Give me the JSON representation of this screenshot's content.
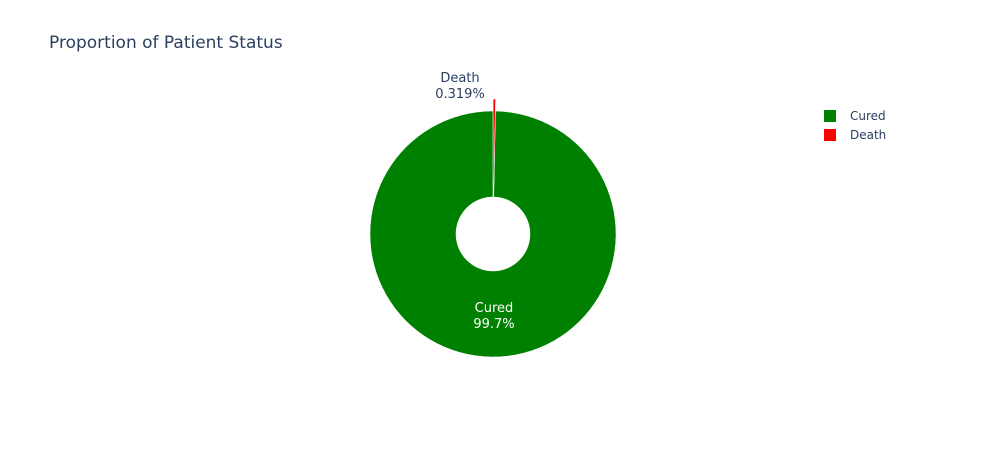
{
  "title": "Proportion of Patient Status",
  "chart_data": {
    "type": "pie",
    "hole": true,
    "title": "Proportion of Patient Status",
    "legend_position": "right",
    "slices": [
      {
        "label": "Cured",
        "percent": 99.681,
        "percent_label": "99.7%",
        "color": "#008000"
      },
      {
        "label": "Death",
        "percent": 0.319,
        "percent_label": "0.319%",
        "color": "#ff0000"
      }
    ]
  }
}
